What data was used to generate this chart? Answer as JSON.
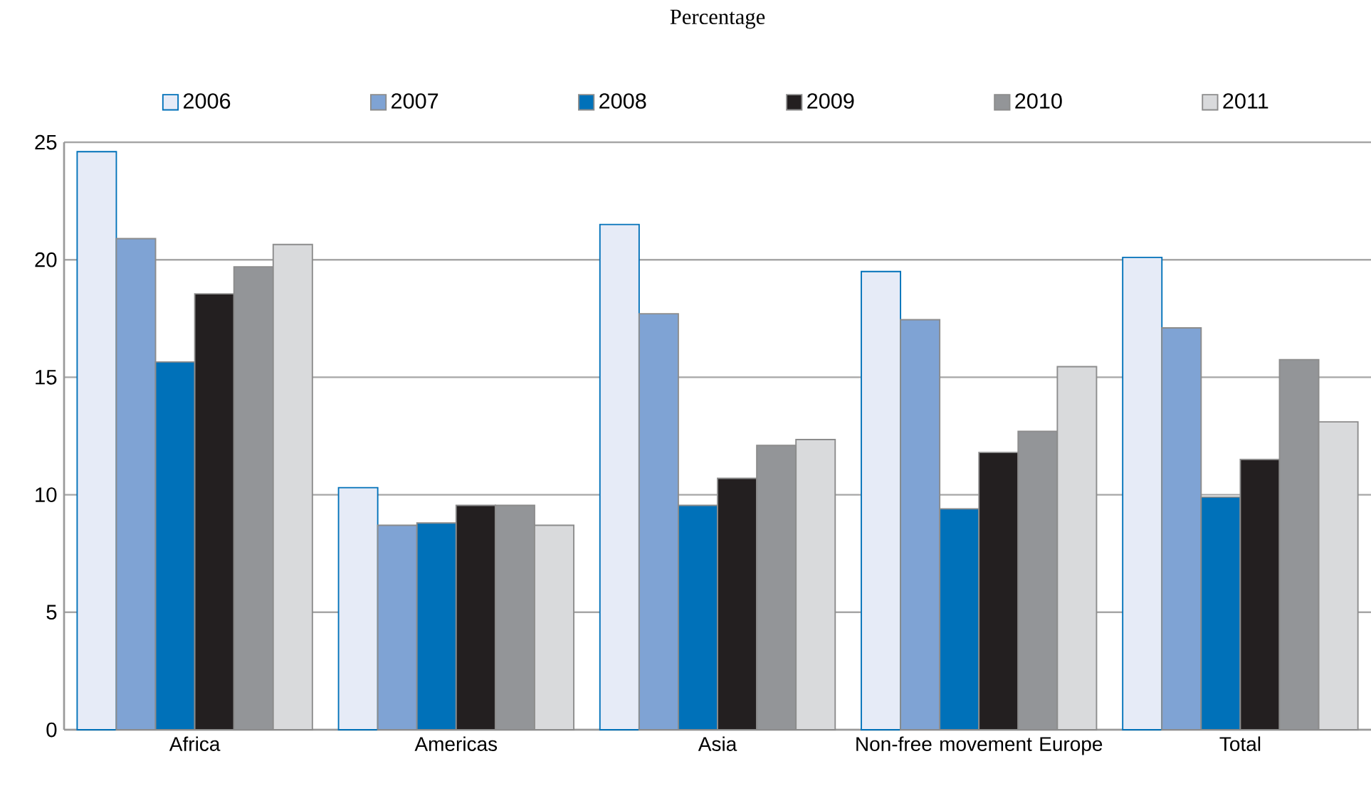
{
  "chart_data": {
    "type": "bar",
    "title": "Percentage",
    "categories": [
      "Africa",
      "Americas",
      "Asia",
      "Non-free movement Europe",
      "Total"
    ],
    "series": [
      {
        "name": "2006",
        "color": "#e6ebf7",
        "values": [
          24.6,
          10.3,
          21.5,
          19.5,
          20.1
        ]
      },
      {
        "name": "2007",
        "color": "#7fa3d4",
        "values": [
          20.9,
          8.7,
          17.7,
          17.45,
          17.1
        ]
      },
      {
        "name": "2008",
        "color": "#0071b9",
        "values": [
          15.65,
          8.8,
          9.55,
          9.4,
          9.9
        ]
      },
      {
        "name": "2009",
        "color": "#231f20",
        "values": [
          18.55,
          9.55,
          10.7,
          11.8,
          11.5
        ]
      },
      {
        "name": "2010",
        "color": "#939598",
        "values": [
          19.7,
          9.55,
          12.1,
          12.7,
          15.75
        ]
      },
      {
        "name": "2011",
        "color": "#d9dadc",
        "values": [
          20.65,
          8.7,
          12.35,
          15.45,
          13.1
        ]
      }
    ],
    "ylim": [
      0,
      25
    ],
    "yticks": [
      0,
      5,
      10,
      15,
      20,
      25
    ],
    "grid": "y",
    "legend": "top"
  }
}
